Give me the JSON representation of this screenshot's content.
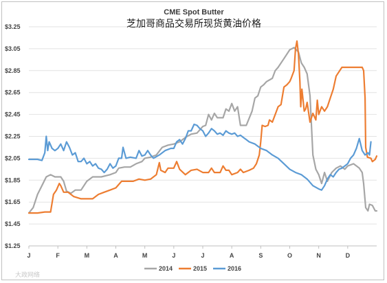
{
  "chart_data": {
    "type": "line",
    "title": "CME Spot Butter",
    "subtitle": "芝加哥商品交易所现货黄油价格",
    "xlabel": "",
    "ylabel": "",
    "ylim": [
      1.25,
      3.25
    ],
    "yticks": [
      "$1.25",
      "$1.45",
      "$1.65",
      "$1.85",
      "$2.05",
      "$2.25",
      "$2.45",
      "$2.65",
      "$2.85",
      "$3.05",
      "$3.25"
    ],
    "yticks_values": [
      1.25,
      1.45,
      1.65,
      1.85,
      2.05,
      2.25,
      2.45,
      2.65,
      2.85,
      3.05,
      3.25
    ],
    "xlim": [
      0,
      12
    ],
    "x_categories": [
      "J",
      "F",
      "M",
      "A",
      "M",
      "J",
      "J",
      "A",
      "S",
      "O",
      "N",
      "D"
    ],
    "grid": true,
    "legend_position": "bottom",
    "series": [
      {
        "name": "2014",
        "color": "#a6a6a6",
        "points": [
          [
            0.0,
            1.55
          ],
          [
            0.15,
            1.6
          ],
          [
            0.3,
            1.72
          ],
          [
            0.45,
            1.8
          ],
          [
            0.6,
            1.88
          ],
          [
            0.75,
            1.9
          ],
          [
            0.9,
            1.88
          ],
          [
            1.1,
            1.88
          ],
          [
            1.2,
            1.84
          ],
          [
            1.3,
            1.75
          ],
          [
            1.45,
            1.73
          ],
          [
            1.6,
            1.76
          ],
          [
            1.8,
            1.76
          ],
          [
            2.0,
            1.84
          ],
          [
            2.2,
            1.88
          ],
          [
            2.5,
            1.88
          ],
          [
            2.8,
            1.9
          ],
          [
            3.0,
            1.92
          ],
          [
            3.1,
            1.96
          ],
          [
            3.3,
            1.97
          ],
          [
            3.5,
            1.97
          ],
          [
            3.7,
            2.0
          ],
          [
            3.9,
            2.02
          ],
          [
            4.0,
            2.05
          ],
          [
            4.2,
            2.06
          ],
          [
            4.4,
            2.08
          ],
          [
            4.6,
            2.15
          ],
          [
            4.8,
            2.17
          ],
          [
            5.0,
            2.18
          ],
          [
            5.2,
            2.2
          ],
          [
            5.4,
            2.24
          ],
          [
            5.6,
            2.27
          ],
          [
            5.8,
            2.28
          ],
          [
            6.0,
            2.34
          ],
          [
            6.1,
            2.35
          ],
          [
            6.2,
            2.45
          ],
          [
            6.3,
            2.4
          ],
          [
            6.4,
            2.46
          ],
          [
            6.5,
            2.42
          ],
          [
            6.7,
            2.42
          ],
          [
            6.8,
            2.5
          ],
          [
            6.9,
            2.48
          ],
          [
            7.0,
            2.55
          ],
          [
            7.1,
            2.48
          ],
          [
            7.2,
            2.52
          ],
          [
            7.3,
            2.35
          ],
          [
            7.5,
            2.35
          ],
          [
            7.7,
            2.48
          ],
          [
            7.8,
            2.6
          ],
          [
            7.9,
            2.62
          ],
          [
            8.0,
            2.7
          ],
          [
            8.1,
            2.72
          ],
          [
            8.2,
            2.75
          ],
          [
            8.4,
            2.78
          ],
          [
            8.5,
            2.85
          ],
          [
            8.6,
            2.88
          ],
          [
            8.8,
            2.96
          ],
          [
            9.0,
            3.04
          ],
          [
            9.15,
            3.06
          ],
          [
            9.3,
            3.02
          ],
          [
            9.4,
            2.92
          ],
          [
            9.5,
            2.88
          ],
          [
            9.6,
            2.82
          ],
          [
            9.7,
            2.62
          ],
          [
            9.8,
            2.08
          ],
          [
            9.9,
            1.95
          ],
          [
            10.0,
            1.9
          ],
          [
            10.1,
            1.82
          ],
          [
            10.2,
            1.92
          ],
          [
            10.3,
            1.84
          ],
          [
            10.45,
            1.92
          ],
          [
            10.6,
            1.96
          ],
          [
            10.75,
            1.98
          ],
          [
            10.9,
            1.95
          ],
          [
            11.0,
            1.98
          ],
          [
            11.2,
            2.0
          ],
          [
            11.4,
            1.96
          ],
          [
            11.5,
            1.92
          ],
          [
            11.55,
            1.82
          ],
          [
            11.62,
            1.6
          ],
          [
            11.7,
            1.57
          ],
          [
            11.75,
            1.63
          ],
          [
            11.85,
            1.62
          ],
          [
            11.95,
            1.57
          ],
          [
            12.0,
            1.57
          ]
        ]
      },
      {
        "name": "2015",
        "color": "#ed7d31",
        "points": [
          [
            0.0,
            1.55
          ],
          [
            0.3,
            1.55
          ],
          [
            0.55,
            1.56
          ],
          [
            0.75,
            1.56
          ],
          [
            0.85,
            1.72
          ],
          [
            0.95,
            1.76
          ],
          [
            1.05,
            1.82
          ],
          [
            1.1,
            1.8
          ],
          [
            1.2,
            1.74
          ],
          [
            1.35,
            1.74
          ],
          [
            1.55,
            1.7
          ],
          [
            1.8,
            1.68
          ],
          [
            2.0,
            1.68
          ],
          [
            2.2,
            1.68
          ],
          [
            2.4,
            1.72
          ],
          [
            2.6,
            1.74
          ],
          [
            2.8,
            1.76
          ],
          [
            3.0,
            1.78
          ],
          [
            3.2,
            1.84
          ],
          [
            3.4,
            1.84
          ],
          [
            3.6,
            1.84
          ],
          [
            3.8,
            1.86
          ],
          [
            4.0,
            1.85
          ],
          [
            4.2,
            1.86
          ],
          [
            4.4,
            1.9
          ],
          [
            4.5,
            2.01
          ],
          [
            4.55,
            1.94
          ],
          [
            4.7,
            1.92
          ],
          [
            4.8,
            1.96
          ],
          [
            5.0,
            1.96
          ],
          [
            5.1,
            2.02
          ],
          [
            5.2,
            1.95
          ],
          [
            5.4,
            1.9
          ],
          [
            5.6,
            1.94
          ],
          [
            5.8,
            1.95
          ],
          [
            6.0,
            1.92
          ],
          [
            6.2,
            1.92
          ],
          [
            6.3,
            1.96
          ],
          [
            6.4,
            1.92
          ],
          [
            6.6,
            1.92
          ],
          [
            6.7,
            1.98
          ],
          [
            6.8,
            1.94
          ],
          [
            6.9,
            1.94
          ],
          [
            7.0,
            1.9
          ],
          [
            7.2,
            1.92
          ],
          [
            7.3,
            1.95
          ],
          [
            7.4,
            1.92
          ],
          [
            7.6,
            1.94
          ],
          [
            7.75,
            1.96
          ],
          [
            7.85,
            2.0
          ],
          [
            7.95,
            2.08
          ],
          [
            8.0,
            2.2
          ],
          [
            8.05,
            2.35
          ],
          [
            8.15,
            2.34
          ],
          [
            8.25,
            2.35
          ],
          [
            8.3,
            2.4
          ],
          [
            8.4,
            2.38
          ],
          [
            8.5,
            2.45
          ],
          [
            8.6,
            2.52
          ],
          [
            8.7,
            2.54
          ],
          [
            8.8,
            2.7
          ],
          [
            8.9,
            2.72
          ],
          [
            9.0,
            2.75
          ],
          [
            9.05,
            2.78
          ],
          [
            9.15,
            2.85
          ],
          [
            9.2,
            3.05
          ],
          [
            9.25,
            3.12
          ],
          [
            9.3,
            3.0
          ],
          [
            9.35,
            2.75
          ],
          [
            9.38,
            2.52
          ],
          [
            9.42,
            2.68
          ],
          [
            9.5,
            2.48
          ],
          [
            9.55,
            2.5
          ],
          [
            9.6,
            2.56
          ],
          [
            9.7,
            2.38
          ],
          [
            9.8,
            2.46
          ],
          [
            9.9,
            2.4
          ],
          [
            9.95,
            2.58
          ],
          [
            10.0,
            2.45
          ],
          [
            10.1,
            2.52
          ],
          [
            10.2,
            2.48
          ],
          [
            10.3,
            2.52
          ],
          [
            10.4,
            2.6
          ],
          [
            10.5,
            2.68
          ],
          [
            10.6,
            2.8
          ],
          [
            10.8,
            2.88
          ],
          [
            11.0,
            2.88
          ],
          [
            11.2,
            2.88
          ],
          [
            11.4,
            2.88
          ],
          [
            11.5,
            2.88
          ],
          [
            11.55,
            2.85
          ],
          [
            11.6,
            2.6
          ],
          [
            11.62,
            2.15
          ],
          [
            11.68,
            2.06
          ],
          [
            11.8,
            2.05
          ],
          [
            11.85,
            2.02
          ],
          [
            11.95,
            2.04
          ],
          [
            12.0,
            2.07
          ]
        ]
      },
      {
        "name": "2016",
        "color": "#5b9bd5",
        "points": [
          [
            0.0,
            2.04
          ],
          [
            0.3,
            2.04
          ],
          [
            0.45,
            2.03
          ],
          [
            0.55,
            2.1
          ],
          [
            0.6,
            2.25
          ],
          [
            0.65,
            2.12
          ],
          [
            0.7,
            2.2
          ],
          [
            0.8,
            2.14
          ],
          [
            0.9,
            2.12
          ],
          [
            1.0,
            2.14
          ],
          [
            1.1,
            2.18
          ],
          [
            1.2,
            2.12
          ],
          [
            1.3,
            2.2
          ],
          [
            1.4,
            2.15
          ],
          [
            1.5,
            2.08
          ],
          [
            1.6,
            2.1
          ],
          [
            1.7,
            2.02
          ],
          [
            1.8,
            2.02
          ],
          [
            1.9,
            2.05
          ],
          [
            2.0,
            2.0
          ],
          [
            2.1,
            2.02
          ],
          [
            2.2,
            1.98
          ],
          [
            2.3,
            2.0
          ],
          [
            2.4,
            1.96
          ],
          [
            2.5,
            1.95
          ],
          [
            2.6,
            1.92
          ],
          [
            2.7,
            1.95
          ],
          [
            2.8,
            2.0
          ],
          [
            2.9,
            1.96
          ],
          [
            3.0,
            1.98
          ],
          [
            3.1,
            2.05
          ],
          [
            3.2,
            2.05
          ],
          [
            3.25,
            2.15
          ],
          [
            3.35,
            2.05
          ],
          [
            3.5,
            2.06
          ],
          [
            3.7,
            2.05
          ],
          [
            3.8,
            2.12
          ],
          [
            3.9,
            2.07
          ],
          [
            4.0,
            2.08
          ],
          [
            4.1,
            2.12
          ],
          [
            4.2,
            2.08
          ],
          [
            4.3,
            2.05
          ],
          [
            4.5,
            2.08
          ],
          [
            4.7,
            2.12
          ],
          [
            4.9,
            2.14
          ],
          [
            5.0,
            2.14
          ],
          [
            5.1,
            2.2
          ],
          [
            5.2,
            2.22
          ],
          [
            5.3,
            2.18
          ],
          [
            5.4,
            2.23
          ],
          [
            5.5,
            2.3
          ],
          [
            5.6,
            2.3
          ],
          [
            5.7,
            2.36
          ],
          [
            5.8,
            2.35
          ],
          [
            5.9,
            2.32
          ],
          [
            6.0,
            2.3
          ],
          [
            6.1,
            2.25
          ],
          [
            6.2,
            2.28
          ],
          [
            6.3,
            2.32
          ],
          [
            6.4,
            2.3
          ],
          [
            6.5,
            2.27
          ],
          [
            6.6,
            2.28
          ],
          [
            6.7,
            2.26
          ],
          [
            6.8,
            2.3
          ],
          [
            6.9,
            2.28
          ],
          [
            7.0,
            2.27
          ],
          [
            7.1,
            2.28
          ],
          [
            7.2,
            2.25
          ],
          [
            7.3,
            2.26
          ],
          [
            7.4,
            2.24
          ],
          [
            7.5,
            2.22
          ],
          [
            7.6,
            2.2
          ],
          [
            7.8,
            2.18
          ],
          [
            8.0,
            2.14
          ],
          [
            8.2,
            2.12
          ],
          [
            8.4,
            2.08
          ],
          [
            8.6,
            2.05
          ],
          [
            8.8,
            2.0
          ],
          [
            9.0,
            1.95
          ],
          [
            9.2,
            1.92
          ],
          [
            9.4,
            1.9
          ],
          [
            9.6,
            1.86
          ],
          [
            9.8,
            1.8
          ],
          [
            10.0,
            1.77
          ],
          [
            10.1,
            1.76
          ],
          [
            10.2,
            1.8
          ],
          [
            10.3,
            1.86
          ],
          [
            10.4,
            1.9
          ],
          [
            10.5,
            1.88
          ],
          [
            10.6,
            1.92
          ],
          [
            10.7,
            1.95
          ],
          [
            10.8,
            1.96
          ],
          [
            10.9,
            1.98
          ],
          [
            11.0,
            2.0
          ],
          [
            11.1,
            2.05
          ],
          [
            11.2,
            2.08
          ],
          [
            11.3,
            2.14
          ],
          [
            11.4,
            2.23
          ],
          [
            11.5,
            2.12
          ],
          [
            11.6,
            2.08
          ],
          [
            11.7,
            2.1
          ],
          [
            11.75,
            2.08
          ],
          [
            11.8,
            2.2
          ]
        ]
      }
    ]
  },
  "watermark": "大政网络"
}
